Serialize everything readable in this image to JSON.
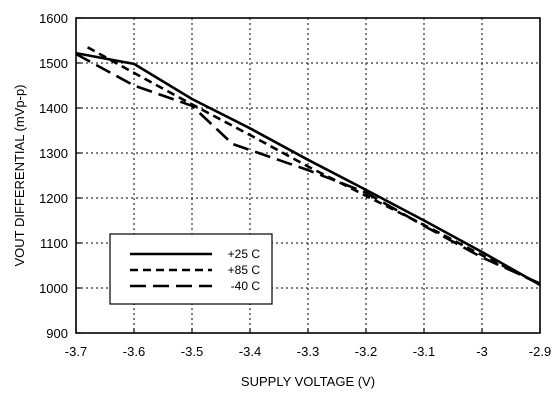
{
  "chart_data": {
    "type": "line",
    "title": "",
    "xlabel": "SUPPLY VOLTAGE (V)",
    "ylabel": "VOUT DIFFERENTIAL (mVp-p)",
    "xlim": [
      -3.7,
      -2.9
    ],
    "ylim": [
      900,
      1600
    ],
    "x_ticks": [
      -3.7,
      -3.6,
      -3.5,
      -3.4,
      -3.3,
      -3.2,
      -3.1,
      -3.0,
      -2.9
    ],
    "x_tick_labels": [
      "-3.7",
      "-3.6",
      "-3.5",
      "-3.4",
      "-3.3",
      "-3.2",
      "-3.1",
      "-3",
      "-2.9"
    ],
    "y_ticks": [
      900,
      1000,
      1100,
      1200,
      1300,
      1400,
      1500,
      1600
    ],
    "y_tick_labels": [
      "900",
      "1000",
      "1100",
      "1200",
      "1300",
      "1400",
      "1500",
      "1600"
    ],
    "grid": true,
    "legend_position": "bottom-left",
    "series": [
      {
        "name": "+25 C",
        "style": "solid",
        "color": "#000000",
        "points": [
          [
            -3.7,
            1522
          ],
          [
            -3.6,
            1498
          ],
          [
            -3.5,
            1420
          ],
          [
            -3.4,
            1355
          ],
          [
            -3.3,
            1285
          ],
          [
            -3.2,
            1218
          ],
          [
            -3.1,
            1150
          ],
          [
            -3.0,
            1080
          ],
          [
            -2.9,
            1007
          ]
        ]
      },
      {
        "name": "+85 C",
        "style": "dashed",
        "color": "#000000",
        "points": [
          [
            -3.68,
            1535
          ],
          [
            -3.6,
            1478
          ],
          [
            -3.5,
            1408
          ],
          [
            -3.4,
            1340
          ],
          [
            -3.3,
            1270
          ],
          [
            -3.2,
            1205
          ],
          [
            -3.1,
            1140
          ],
          [
            -3.0,
            1073
          ],
          [
            -2.9,
            1008
          ]
        ]
      },
      {
        "name": "-40 C",
        "style": "longdash",
        "color": "#000000",
        "points": [
          [
            -3.7,
            1520
          ],
          [
            -3.6,
            1450
          ],
          [
            -3.5,
            1405
          ],
          [
            -3.43,
            1320
          ],
          [
            -3.3,
            1262
          ],
          [
            -3.2,
            1212
          ],
          [
            -3.1,
            1138
          ],
          [
            -3.0,
            1068
          ],
          [
            -2.9,
            1010
          ]
        ]
      }
    ]
  }
}
